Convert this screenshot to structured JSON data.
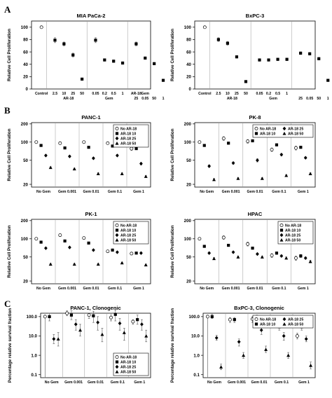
{
  "figure": {
    "panel_letters": [
      "A",
      "B",
      "C"
    ]
  },
  "chart_data": [
    {
      "id": "A1",
      "type": "scatter",
      "title": "MIA PaCa-2",
      "ylabel": "Relative Cell Proliferation",
      "yscale": "linear",
      "ylim": [
        0,
        110
      ],
      "yticks": [
        0,
        20,
        40,
        60,
        80,
        100
      ],
      "groups": [
        {
          "x_labels": [
            "Control"
          ],
          "markers": [
            "open-circle"
          ],
          "values": [
            100
          ],
          "errors": [
            0
          ]
        },
        {
          "x_labels": [
            "2.5",
            "10",
            "25",
            "50"
          ],
          "caption": "AR-18",
          "markers": [
            "filled-square",
            "filled-square",
            "filled-square",
            "filled-square"
          ],
          "values": [
            79,
            73,
            55,
            16
          ],
          "errors": [
            4,
            3,
            3,
            1
          ]
        },
        {
          "x_labels": [
            "0.05",
            "0.2",
            "0.5",
            "1"
          ],
          "caption": "Gem",
          "markers": [
            "filled-square",
            "filled-square",
            "filled-square",
            "filled-square"
          ],
          "values": [
            79,
            47,
            45,
            42
          ],
          "errors": [
            4,
            2,
            2,
            2
          ]
        },
        {
          "x_labels": [
            "AR-18\n25",
            "AR-18\n50",
            "Gem\n0.05",
            "1"
          ],
          "x_labels_a": [
            "AR-18",
            "Gem",
            "",
            ""
          ],
          "x_labels_b": [
            "25",
            "0.05",
            "50",
            "1"
          ],
          "markers": [
            "filled-square",
            "filled-square",
            "filled-square",
            "filled-square"
          ],
          "values": [
            73,
            50,
            41,
            14
          ],
          "errors": [
            3,
            2,
            2,
            1
          ]
        }
      ]
    },
    {
      "id": "A2",
      "type": "scatter",
      "title": "BxPC-3",
      "ylabel": "Relative Cell Proliferation",
      "yscale": "linear",
      "ylim": [
        0,
        110
      ],
      "yticks": [
        0,
        20,
        40,
        60,
        80,
        100
      ],
      "groups": [
        {
          "x_labels": [
            "Control"
          ],
          "markers": [
            "open-circle"
          ],
          "values": [
            100
          ],
          "errors": [
            0
          ]
        },
        {
          "x_labels": [
            "2.5",
            "10",
            "25",
            "50"
          ],
          "caption": "AR-18",
          "markers": [
            "filled-square",
            "filled-square",
            "filled-square",
            "filled-square"
          ],
          "values": [
            80,
            74,
            52,
            12
          ],
          "errors": [
            3,
            3,
            2,
            1
          ]
        },
        {
          "x_labels": [
            "0.05",
            "0.2",
            "0.5",
            "1"
          ],
          "caption": "Gem",
          "markers": [
            "filled-square",
            "filled-square",
            "filled-square",
            "filled-square"
          ],
          "values": [
            47,
            47,
            48,
            48
          ],
          "errors": [
            2,
            2,
            2,
            2
          ]
        },
        {
          "x_labels": [
            "AR-18",
            "Gem",
            "",
            ""
          ],
          "x_labels_b": [
            "25",
            "0.05",
            "50",
            "1"
          ],
          "markers": [
            "filled-square",
            "filled-square",
            "filled-square",
            "filled-square"
          ],
          "values": [
            58,
            57,
            49,
            14
          ],
          "errors": [
            2,
            2,
            2,
            1
          ]
        }
      ]
    },
    {
      "id": "B1",
      "type": "scatter",
      "title": "PANC-1",
      "ylabel": "Relative Cell Proliferation",
      "yscale": "log",
      "ylim": [
        18,
        210
      ],
      "yticks": [
        20,
        50,
        100,
        200
      ],
      "categories": [
        "No Gem",
        "Gem 0.001",
        "Gem 0.01",
        "Gem 0.1",
        "Gem 1"
      ],
      "legend": {
        "position": "top-right",
        "entries": [
          "No AR-18",
          "AR-18 10",
          "AR-18 25",
          "AR-18 50"
        ],
        "columns": 1
      },
      "series": [
        {
          "name": "No AR-18",
          "marker": "open-circle",
          "values": [
            100,
            96,
            100,
            96,
            78
          ],
          "errors": [
            3,
            5,
            4,
            4,
            5
          ]
        },
        {
          "name": "AR-18 10",
          "marker": "filled-square",
          "values": [
            88,
            80,
            82,
            86,
            78
          ],
          "errors": [
            3,
            3,
            3,
            3,
            3
          ]
        },
        {
          "name": "AR-18 25",
          "marker": "filled-diamond",
          "values": [
            60,
            58,
            54,
            60,
            44
          ],
          "errors": [
            2,
            2,
            2,
            2,
            2
          ]
        },
        {
          "name": "AR-18 50",
          "marker": "filled-triangle",
          "values": [
            38,
            36,
            30,
            30,
            27
          ],
          "errors": [
            1,
            1,
            1,
            1,
            1
          ]
        }
      ]
    },
    {
      "id": "B2",
      "type": "scatter",
      "title": "PK-8",
      "ylabel": "Relative Cell Proliferation",
      "yscale": "log",
      "ylim": [
        18,
        210
      ],
      "yticks": [
        20,
        50,
        100,
        200
      ],
      "categories": [
        "No Gem",
        "Gem 0.001",
        "Gem 0.01",
        "Gem 0.1",
        "Gem 1"
      ],
      "legend": {
        "position": "top-right",
        "entries": [
          "No AR-18",
          "AR-18 25",
          "AR-18 10",
          "AR-18 50"
        ],
        "columns": 2
      },
      "series": [
        {
          "name": "No AR-18",
          "marker": "open-circle",
          "values": [
            100,
            115,
            103,
            75,
            80
          ],
          "errors": [
            3,
            8,
            7,
            5,
            6
          ]
        },
        {
          "name": "AR-18 10",
          "marker": "filled-square",
          "values": [
            88,
            96,
            105,
            90,
            82
          ],
          "errors": [
            3,
            4,
            4,
            4,
            3
          ]
        },
        {
          "name": "AR-18 25",
          "marker": "filled-diamond",
          "values": [
            40,
            45,
            50,
            62,
            55
          ],
          "errors": [
            2,
            2,
            3,
            3,
            2
          ]
        },
        {
          "name": "AR-18 50",
          "marker": "filled-triangle",
          "values": [
            24,
            25,
            25,
            28,
            30
          ],
          "errors": [
            1,
            1,
            1,
            1,
            1
          ]
        }
      ]
    },
    {
      "id": "B3",
      "type": "scatter",
      "title": "PK-1",
      "ylabel": "Relative Cell Proliferation",
      "yscale": "log",
      "ylim": [
        18,
        210
      ],
      "yticks": [
        20,
        50,
        100,
        200
      ],
      "categories": [
        "No Gem",
        "Gem 0.001",
        "Gem 0.01",
        "Gem 0.1",
        "Gem 1"
      ],
      "legend": {
        "position": "top-right",
        "entries": [
          "No AR-18",
          "AR-18 10",
          "AR-18 25",
          "AR-18 50"
        ],
        "columns": 1
      },
      "series": [
        {
          "name": "No AR-18",
          "marker": "open-circle",
          "values": [
            100,
            115,
            103,
            62,
            57
          ],
          "errors": [
            3,
            6,
            5,
            3,
            3
          ]
        },
        {
          "name": "AR-18 10",
          "marker": "filled-square",
          "values": [
            88,
            92,
            85,
            65,
            58
          ],
          "errors": [
            3,
            3,
            3,
            3,
            2
          ]
        },
        {
          "name": "AR-18 25",
          "marker": "filled-diamond",
          "values": [
            70,
            72,
            65,
            60,
            58
          ],
          "errors": [
            2,
            2,
            2,
            2,
            2
          ]
        },
        {
          "name": "AR-18 50",
          "marker": "filled-triangle",
          "values": [
            38,
            38,
            38,
            40,
            37
          ],
          "errors": [
            1,
            1,
            1,
            1,
            1
          ]
        }
      ]
    },
    {
      "id": "B4",
      "type": "scatter",
      "title": "HPAC",
      "ylabel": "Relative Cell Proliferation",
      "yscale": "log",
      "ylim": [
        18,
        210
      ],
      "yticks": [
        20,
        50,
        100,
        200
      ],
      "categories": [
        "No Gem",
        "Gem 0.001",
        "Gem 0.01",
        "Gem 0.1",
        "Gem 1"
      ],
      "legend": {
        "position": "top-right",
        "entries": [
          "No AR-18",
          "AR-18 10",
          "AR-18 25",
          "AR-18 50"
        ],
        "columns": 1
      },
      "series": [
        {
          "name": "No AR-18",
          "marker": "open-circle",
          "values": [
            100,
            105,
            82,
            53,
            48
          ],
          "errors": [
            3,
            7,
            6,
            4,
            4
          ]
        },
        {
          "name": "AR-18 10",
          "marker": "filled-square",
          "values": [
            75,
            78,
            70,
            58,
            52
          ],
          "errors": [
            3,
            3,
            3,
            3,
            3
          ]
        },
        {
          "name": "AR-18 25",
          "marker": "filled-diamond",
          "values": [
            58,
            60,
            56,
            52,
            48
          ],
          "errors": [
            2,
            2,
            2,
            2,
            2
          ]
        },
        {
          "name": "AR-18 50",
          "marker": "filled-triangle",
          "values": [
            47,
            50,
            50,
            48,
            42
          ],
          "errors": [
            2,
            2,
            2,
            2,
            2
          ]
        }
      ]
    },
    {
      "id": "C1",
      "type": "scatter",
      "title": "PANC-1, Clonogenic",
      "ylabel": "Percentage relative survival fraction",
      "yscale": "log",
      "ylim": [
        0.07,
        150
      ],
      "yticks": [
        0.1,
        1.0,
        10.0,
        100.0
      ],
      "ytick_labels": [
        "0.1",
        "1.0",
        "10.0",
        "100.0"
      ],
      "categories": [
        "No Gem",
        "Gem 0.001",
        "Gem 0.01",
        "Gem 0.1",
        "Gem 1"
      ],
      "legend": {
        "position": "bottom-right",
        "entries": [
          "No AR-18",
          "AR-18 10",
          "AR-18 25",
          "AR-18 50"
        ],
        "columns": 1
      },
      "series": [
        {
          "name": "No AR-18",
          "marker": "open-circle",
          "values": [
            100,
            150,
            120,
            90,
            55
          ],
          "err_lo": [
            0,
            110,
            80,
            60,
            40
          ],
          "err_hi": [
            0,
            200,
            150,
            150,
            70
          ]
        },
        {
          "name": "AR-18 10",
          "marker": "filled-square",
          "values": [
            100,
            120,
            110,
            130,
            70
          ],
          "err_lo": [
            60,
            70,
            50,
            60,
            40
          ],
          "err_hi": [
            150,
            200,
            190,
            220,
            120
          ]
        },
        {
          "name": "AR-18 25",
          "marker": "filled-diamond",
          "values": [
            7,
            40,
            50,
            45,
            40
          ],
          "err_lo": [
            4,
            20,
            20,
            20,
            20
          ],
          "err_hi": [
            12,
            70,
            100,
            80,
            70
          ]
        },
        {
          "name": "AR-18 50",
          "marker": "filled-triangle",
          "values": [
            7,
            20,
            12,
            15,
            10
          ],
          "err_lo": [
            3,
            10,
            5,
            6,
            5
          ],
          "err_hi": [
            15,
            40,
            25,
            25,
            20
          ]
        }
      ]
    },
    {
      "id": "C2",
      "type": "scatter",
      "title": "BxPC-3, Clonogenic",
      "ylabel": "Percentage relative survival fraction",
      "yscale": "log",
      "ylim": [
        0.07,
        150
      ],
      "yticks": [
        0.1,
        1.0,
        10.0,
        100.0
      ],
      "ytick_labels": [
        "0.1",
        "1.0",
        "10.0",
        "100.0"
      ],
      "categories": [
        "No Gem",
        "Gem 0.001",
        "Gem 0.01",
        "Gem 0.1",
        "Gem 1"
      ],
      "legend": {
        "position": "top-right",
        "entries": [
          "No AR-18",
          "AR-18 25",
          "AR-18 10",
          "AR-18 50"
        ],
        "columns": 2
      },
      "series": [
        {
          "name": "No AR-18",
          "marker": "open-circle",
          "values": [
            100,
            70,
            75,
            40,
            10
          ],
          "err_lo": [
            0,
            50,
            50,
            30,
            7
          ],
          "err_hi": [
            0,
            90,
            100,
            50,
            14
          ]
        },
        {
          "name": "AR-18 10",
          "marker": "filled-square",
          "values": [
            100,
            70,
            90,
            30,
            30
          ],
          "err_lo": [
            80,
            50,
            60,
            20,
            20
          ],
          "err_hi": [
            130,
            90,
            120,
            45,
            40
          ]
        },
        {
          "name": "AR-18 25",
          "marker": "filled-diamond",
          "values": [
            8,
            5,
            20,
            10,
            7
          ],
          "err_lo": [
            6,
            3,
            12,
            6,
            5
          ],
          "err_hi": [
            11,
            7,
            30,
            15,
            10
          ]
        },
        {
          "name": "AR-18 50",
          "marker": "filled-triangle",
          "values": [
            0.25,
            1.0,
            2.0,
            1.0,
            0.3
          ],
          "err_lo": [
            0.18,
            0.7,
            1.4,
            0.7,
            0.2
          ],
          "err_hi": [
            0.35,
            1.4,
            3.0,
            1.4,
            0.45
          ]
        }
      ]
    }
  ]
}
